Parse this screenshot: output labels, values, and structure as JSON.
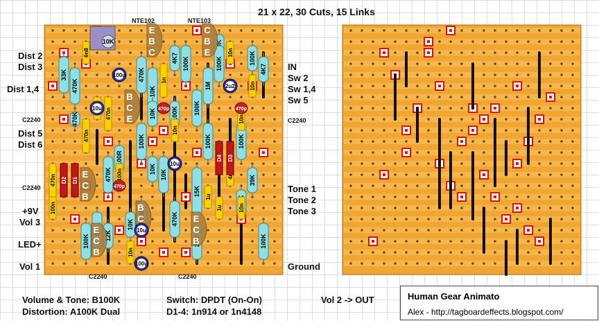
{
  "header": {
    "title": "21 x 22, 30 Cuts, 15 Links"
  },
  "transistor_labels": [
    "NTE102",
    "NTE103"
  ],
  "left_labels": [
    {
      "id": "dist2",
      "text": "Dist 2"
    },
    {
      "id": "dist3",
      "text": "Dist 3"
    },
    {
      "id": "dist14",
      "text": "Dist 1,4"
    },
    {
      "id": "c2240a",
      "text": "C2240"
    },
    {
      "id": "dist5",
      "text": "Dist 5"
    },
    {
      "id": "dist6",
      "text": "Dist 6"
    },
    {
      "id": "c2240b",
      "text": "C2240"
    },
    {
      "id": "p9v",
      "text": "+9V"
    },
    {
      "id": "vol3",
      "text": "Vol 3"
    },
    {
      "id": "ledp",
      "text": "LED+"
    },
    {
      "id": "vol1",
      "text": "Vol 1"
    }
  ],
  "right_labels": [
    {
      "id": "in",
      "text": "IN"
    },
    {
      "id": "sw2",
      "text": "Sw 2"
    },
    {
      "id": "sw14",
      "text": "Sw 1,4"
    },
    {
      "id": "sw5",
      "text": "Sw 5"
    },
    {
      "id": "c2240c",
      "text": "C2240"
    },
    {
      "id": "tone1",
      "text": "Tone 1"
    },
    {
      "id": "tone2",
      "text": "Tone 2"
    },
    {
      "id": "tone3",
      "text": "Tone 3"
    },
    {
      "id": "ground",
      "text": "Ground"
    }
  ],
  "bottom_labels": [
    "C2240",
    "C2240"
  ],
  "notes": {
    "pots_line1": "Volume & Tone: B100K",
    "pots_line2": "Distortion: A100K Dual",
    "switch_line1": "Switch: DPDT (On-On)",
    "switch_line2": "D1-4: 1n914 or 1n4148",
    "vol2": "Vol 2 -> OUT"
  },
  "credit": {
    "title": "Human Gear Animato",
    "subtitle": "Alex - http://tagboardeffects.blogspot.com/"
  },
  "components": {
    "trimmer": "10K",
    "transistors": [
      "EBC",
      "CBE",
      "BCE",
      "ECB",
      "BCE",
      "ECB",
      "ECB"
    ],
    "electrolytics": [
      "100u",
      "10u",
      "2u2",
      "10u",
      "10u",
      "100u"
    ],
    "diodes": [
      "D2",
      "D1",
      "D4",
      "D3"
    ],
    "ceramics": [
      "470p",
      "470p",
      "470p"
    ],
    "resistors": [
      "33K",
      "470K",
      "470K",
      "10K",
      "4K7",
      "100K",
      "680K",
      "100K",
      "4K7",
      "470K",
      "100K",
      "1M",
      "10K",
      "100K",
      "100K",
      "100R",
      "470K",
      "100K",
      "10K",
      "10K",
      "100K",
      "100R",
      "15K",
      "39K",
      "100K",
      "100K",
      "10K",
      "12K",
      "10K",
      "100K",
      "470K",
      "2K2",
      "100K",
      "100K"
    ],
    "film_caps": [
      "6n8",
      "10n",
      "1n",
      "10n",
      "4n7",
      "10n",
      "470n",
      "470n",
      "470n",
      "4n7",
      "1u",
      "10n",
      "10n",
      "10n",
      "10n",
      "100n",
      "100n",
      "1u"
    ]
  },
  "colors": {
    "board": "#f0a630",
    "strip": "#f4b64d",
    "hole": "#6b4a1a",
    "resistor": "#8ee0e6",
    "cut": "#e01010",
    "link": "#111111",
    "filmcap": "#ffd000",
    "electrolytic": "#2a2ab8",
    "transistor": "#a97c3c"
  }
}
